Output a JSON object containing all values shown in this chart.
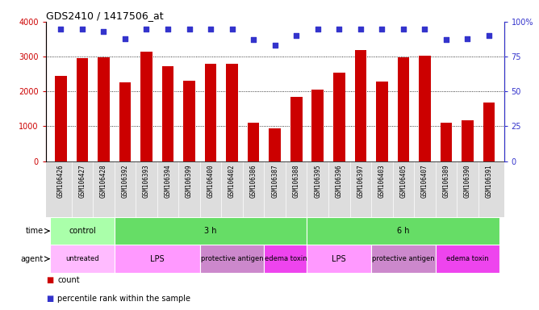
{
  "title": "GDS2410 / 1417506_at",
  "samples": [
    "GSM106426",
    "GSM106427",
    "GSM106428",
    "GSM106392",
    "GSM106393",
    "GSM106394",
    "GSM106399",
    "GSM106400",
    "GSM106402",
    "GSM106386",
    "GSM106387",
    "GSM106388",
    "GSM106395",
    "GSM106396",
    "GSM106397",
    "GSM106403",
    "GSM106405",
    "GSM106407",
    "GSM106389",
    "GSM106390",
    "GSM106391"
  ],
  "counts": [
    2450,
    2960,
    2980,
    2250,
    3150,
    2720,
    2300,
    2800,
    2800,
    1100,
    950,
    1850,
    2060,
    2530,
    3180,
    2280,
    2980,
    3020,
    1100,
    1170,
    1680
  ],
  "percentiles": [
    95,
    95,
    93,
    88,
    95,
    95,
    95,
    95,
    95,
    87,
    83,
    90,
    95,
    95,
    95,
    95,
    95,
    95,
    87,
    88,
    90
  ],
  "bar_color": "#cc0000",
  "dot_color": "#3333cc",
  "ylim_left": [
    0,
    4000
  ],
  "ylim_right": [
    0,
    100
  ],
  "yticks_left": [
    0,
    1000,
    2000,
    3000,
    4000
  ],
  "yticks_right": [
    0,
    25,
    50,
    75,
    100
  ],
  "grid_lines": [
    1000,
    2000,
    3000
  ],
  "time_groups": [
    {
      "label": "control",
      "start": 0,
      "end": 3,
      "color": "#aaffaa"
    },
    {
      "label": "3 h",
      "start": 3,
      "end": 12,
      "color": "#66dd66"
    },
    {
      "label": "6 h",
      "start": 12,
      "end": 21,
      "color": "#66dd66"
    }
  ],
  "agent_groups": [
    {
      "label": "untreated",
      "start": 0,
      "end": 3,
      "color": "#ffbbff"
    },
    {
      "label": "LPS",
      "start": 3,
      "end": 7,
      "color": "#ff99ff"
    },
    {
      "label": "protective antigen",
      "start": 7,
      "end": 10,
      "color": "#cc88cc"
    },
    {
      "label": "edema toxin",
      "start": 10,
      "end": 12,
      "color": "#ee44ee"
    },
    {
      "label": "LPS",
      "start": 12,
      "end": 15,
      "color": "#ff99ff"
    },
    {
      "label": "protective antigen",
      "start": 15,
      "end": 18,
      "color": "#cc88cc"
    },
    {
      "label": "edema toxin",
      "start": 18,
      "end": 21,
      "color": "#ee44ee"
    }
  ],
  "sample_bg": "#dddddd",
  "main_bg": "#ffffff",
  "legend_count_color": "#cc0000",
  "legend_dot_color": "#3333cc"
}
